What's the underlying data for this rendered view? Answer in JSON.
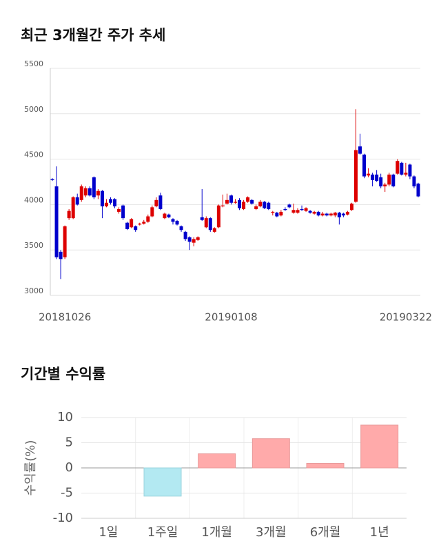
{
  "chart_data": [
    {
      "type": "candlestick",
      "title": "최근 3개월간 주가 추세",
      "categories": [
        null,
        null,
        null,
        "20181026",
        null,
        null,
        null,
        null,
        null,
        null,
        null,
        null,
        null,
        null,
        null,
        null,
        null,
        null,
        null,
        null,
        null,
        null,
        null,
        null,
        null,
        null,
        null,
        null,
        null,
        null,
        null,
        null,
        null,
        null,
        null,
        null,
        null,
        null,
        null,
        null,
        null,
        null,
        null,
        "20190108",
        null,
        null,
        null,
        null,
        null,
        null,
        null,
        null,
        null,
        null,
        null,
        null,
        null,
        null,
        null,
        null,
        null,
        null,
        null,
        null,
        null,
        null,
        null,
        null,
        null,
        null,
        null,
        null,
        null,
        null,
        null,
        null,
        null,
        null,
        null,
        null,
        null,
        null,
        null,
        null,
        null,
        "20190322",
        null,
        null,
        null
      ],
      "open": [
        4280,
        4200,
        3480,
        3420,
        3850,
        3850,
        4080,
        4050,
        4100,
        4180,
        4300,
        4100,
        4150,
        3980,
        4060,
        4060,
        3920,
        3990,
        3800,
        3750,
        3760,
        3780,
        3790,
        3810,
        3870,
        3980,
        4100,
        3850,
        3890,
        3840,
        3820,
        3760,
        3700,
        3640,
        3580,
        3610,
        3860,
        3750,
        3850,
        3700,
        3750,
        3980,
        4010,
        4100,
        4020,
        4050,
        3950,
        4030,
        4050,
        3950,
        3980,
        4030,
        4020,
        3910,
        3910,
        3880,
        3950,
        4000,
        3910,
        3910,
        3950,
        3930,
        3930,
        3900,
        3920,
        3880,
        3900,
        3880,
        3880,
        3910,
        3900,
        3890,
        3940,
        4030,
        4640,
        4550,
        4320,
        4330,
        4330,
        4300,
        4200,
        4220,
        4330,
        4340,
        4460,
        4330,
        4440,
        4310,
        4230
      ],
      "high": [
        4290,
        4420,
        3500,
        3770,
        3950,
        4090,
        4120,
        4220,
        4200,
        4200,
        4310,
        4170,
        4160,
        4060,
        4080,
        4070,
        3970,
        4000,
        3810,
        3850,
        3770,
        3800,
        3830,
        3890,
        3990,
        4080,
        4130,
        3910,
        3900,
        3850,
        3830,
        3770,
        3710,
        3650,
        3640,
        3650,
        4170,
        3870,
        3860,
        3750,
        4000,
        4110,
        4120,
        4110,
        4060,
        4070,
        4050,
        4090,
        4060,
        4000,
        4050,
        4040,
        4030,
        3930,
        3920,
        3940,
        3970,
        4010,
        4010,
        3960,
        3990,
        3970,
        3940,
        3930,
        3930,
        3920,
        3910,
        3910,
        3920,
        3920,
        3910,
        3930,
        4020,
        5050,
        4780,
        4560,
        4400,
        4350,
        4380,
        4340,
        4240,
        4350,
        4340,
        4500,
        4470,
        4460,
        4450,
        4320,
        4240
      ],
      "low": [
        4260,
        3400,
        3180,
        3400,
        3830,
        3840,
        3990,
        4030,
        4080,
        4090,
        4060,
        4060,
        3850,
        3970,
        4000,
        3960,
        3900,
        3830,
        3720,
        3740,
        3700,
        3770,
        3780,
        3800,
        3860,
        3970,
        3940,
        3840,
        3850,
        3780,
        3770,
        3700,
        3600,
        3500,
        3540,
        3600,
        3820,
        3740,
        3700,
        3690,
        3740,
        3970,
        4000,
        4000,
        4010,
        3940,
        3940,
        4020,
        4000,
        3940,
        3970,
        3950,
        3940,
        3880,
        3860,
        3870,
        3930,
        3960,
        3900,
        3900,
        3930,
        3920,
        3900,
        3890,
        3870,
        3870,
        3870,
        3870,
        3860,
        3780,
        3860,
        3880,
        3930,
        4020,
        4550,
        4290,
        4300,
        4200,
        4250,
        4180,
        4140,
        4200,
        4190,
        4330,
        4320,
        4310,
        4280,
        4180,
        4080
      ],
      "close": [
        4270,
        3420,
        3400,
        3760,
        3930,
        4080,
        4000,
        4200,
        4180,
        4100,
        4080,
        4150,
        3980,
        4020,
        4020,
        3980,
        3950,
        3850,
        3730,
        3840,
        3720,
        3790,
        3810,
        3870,
        3970,
        4050,
        3950,
        3900,
        3860,
        3810,
        3780,
        3720,
        3620,
        3590,
        3620,
        3640,
        3830,
        3850,
        3720,
        3740,
        3990,
        3990,
        4050,
        4020,
        4030,
        3960,
        4030,
        4080,
        4010,
        3980,
        4030,
        3960,
        3950,
        3920,
        3870,
        3920,
        3940,
        3970,
        3940,
        3940,
        3940,
        3960,
        3910,
        3920,
        3880,
        3900,
        3880,
        3900,
        3910,
        3860,
        3880,
        3920,
        4010,
        4600,
        4560,
        4310,
        4340,
        4270,
        4260,
        4200,
        4220,
        4330,
        4200,
        4480,
        4330,
        4350,
        4310,
        4200,
        4090
      ],
      "up_color": "#dd0000",
      "down_color": "#0000cc",
      "ylim": [
        3000,
        5500
      ],
      "yticks": [
        3000,
        3500,
        4000,
        4500,
        5000,
        5500
      ],
      "grid": true
    },
    {
      "type": "bar",
      "title": "기간별 수익률",
      "ylabel": "수익률(%)",
      "categories": [
        "1일",
        "1주일",
        "1개월",
        "3개월",
        "6개월",
        "1년"
      ],
      "values": [
        0,
        -5.6,
        2.8,
        5.8,
        0.9,
        8.5
      ],
      "positive_color": "#ffaaaa",
      "negative_color": "#b3e9f2",
      "ylim": [
        -10,
        10
      ],
      "yticks": [
        -10,
        -5,
        0,
        5,
        10
      ],
      "grid": true
    }
  ]
}
